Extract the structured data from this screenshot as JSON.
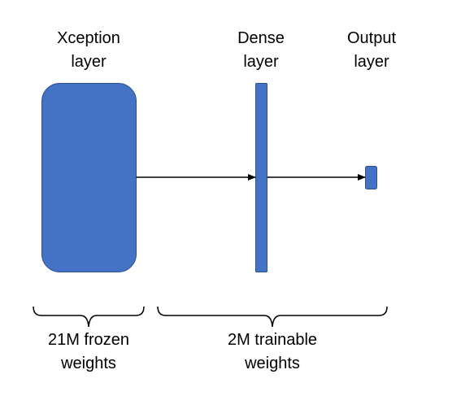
{
  "layers": {
    "xception": {
      "line1": "Xception",
      "line2": "layer"
    },
    "dense": {
      "line1": "Dense",
      "line2": "layer"
    },
    "output": {
      "line1": "Output",
      "line2": "layer"
    }
  },
  "groups": {
    "frozen": {
      "line1": "21M frozen",
      "line2": "weights"
    },
    "trainable": {
      "line1": "2M trainable",
      "line2": "weights"
    }
  },
  "colors": {
    "block_fill": "#4472C4",
    "block_stroke": "#2F528F",
    "line": "#000000"
  }
}
